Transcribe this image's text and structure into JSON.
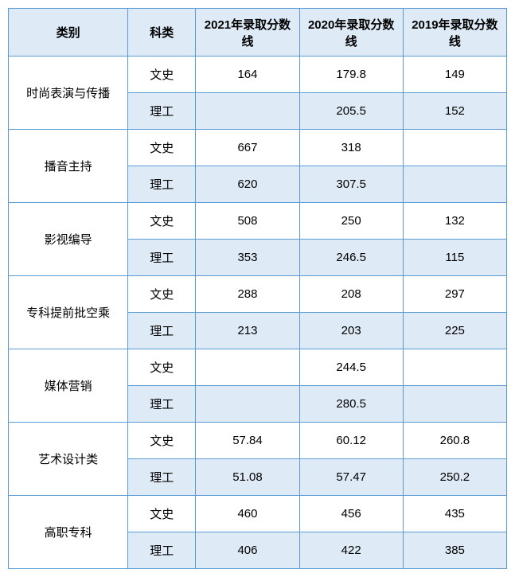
{
  "table": {
    "headers": {
      "category": "类别",
      "subject": "科类",
      "year2021": "2021年录取分数线",
      "year2020": "2020年录取分数线",
      "year2019": "2019年录取分数线"
    },
    "subjects": {
      "wenshi": "文史",
      "ligong": "理工"
    },
    "categories": [
      {
        "name": "时尚表演与传播",
        "rows": [
          {
            "subject": "wenshi",
            "y2021": "164",
            "y2020": "179.8",
            "y2019": "149"
          },
          {
            "subject": "ligong",
            "y2021": "",
            "y2020": "205.5",
            "y2019": "152"
          }
        ]
      },
      {
        "name": "播音主持",
        "rows": [
          {
            "subject": "wenshi",
            "y2021": "667",
            "y2020": "318",
            "y2019": ""
          },
          {
            "subject": "ligong",
            "y2021": "620",
            "y2020": "307.5",
            "y2019": ""
          }
        ]
      },
      {
        "name": "影视编导",
        "rows": [
          {
            "subject": "wenshi",
            "y2021": "508",
            "y2020": "250",
            "y2019": "132"
          },
          {
            "subject": "ligong",
            "y2021": "353",
            "y2020": "246.5",
            "y2019": "115"
          }
        ]
      },
      {
        "name": "专科提前批空乘",
        "rows": [
          {
            "subject": "wenshi",
            "y2021": "288",
            "y2020": "208",
            "y2019": "297"
          },
          {
            "subject": "ligong",
            "y2021": "213",
            "y2020": "203",
            "y2019": "225"
          }
        ]
      },
      {
        "name": "媒体营销",
        "rows": [
          {
            "subject": "wenshi",
            "y2021": "",
            "y2020": "244.5",
            "y2019": ""
          },
          {
            "subject": "ligong",
            "y2021": "",
            "y2020": "280.5",
            "y2019": ""
          }
        ]
      },
      {
        "name": "艺术设计类",
        "rows": [
          {
            "subject": "wenshi",
            "y2021": "57.84",
            "y2020": "60.12",
            "y2019": "260.8"
          },
          {
            "subject": "ligong",
            "y2021": "51.08",
            "y2020": "57.47",
            "y2019": "250.2"
          }
        ]
      },
      {
        "name": "高职专科",
        "rows": [
          {
            "subject": "wenshi",
            "y2021": "460",
            "y2020": "456",
            "y2019": "435"
          },
          {
            "subject": "ligong",
            "y2021": "406",
            "y2020": "422",
            "y2019": "385"
          }
        ]
      }
    ],
    "styling": {
      "header_bg_color": "#deeaf6",
      "border_color": "#5b9bd5",
      "row_alt_bg": "#deeaf6",
      "row_bg": "#ffffff",
      "text_color": "#000000",
      "font_size": 15,
      "header_font_weight": "bold",
      "col_widths": {
        "category": 150,
        "subject": 85,
        "year": 130
      }
    }
  }
}
